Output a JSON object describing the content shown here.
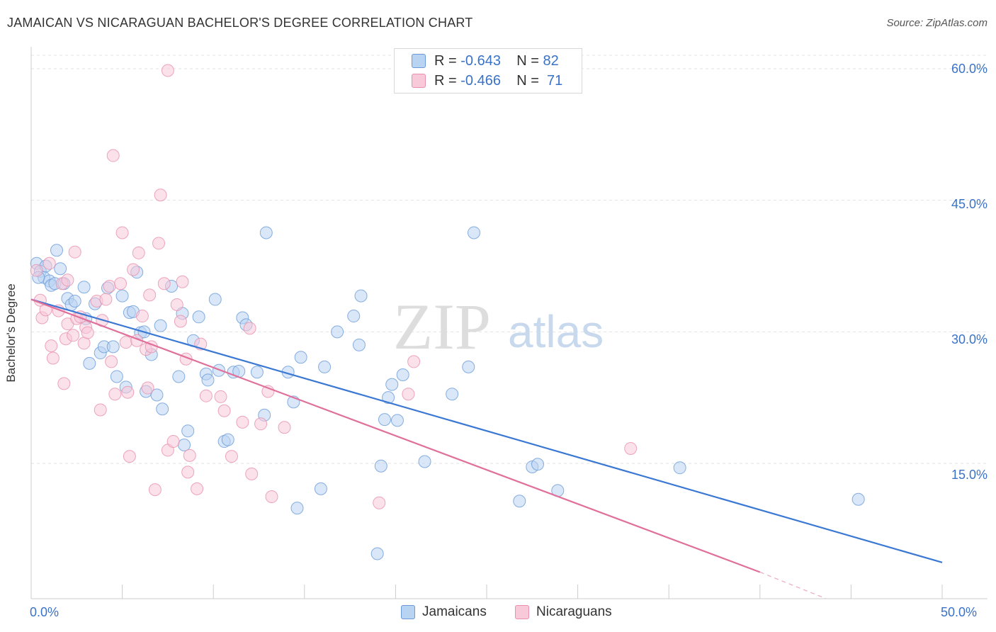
{
  "title": "JAMAICAN VS NICARAGUAN BACHELOR'S DEGREE CORRELATION CHART",
  "source": "Source: ZipAtlas.com",
  "watermark": {
    "zip": "ZIP",
    "atlas": "atlas"
  },
  "legend": {
    "rows": [
      {
        "r_label": "R = ",
        "r_value": "-0.643",
        "n_label": "N = ",
        "n_value": "82",
        "color": "#6a9bd8",
        "fill": "#b9d3f3"
      },
      {
        "r_label": "R = ",
        "r_value": "-0.466",
        "n_label": "N = ",
        "n_value": "71",
        "color": "#e890ac",
        "fill": "#f8c9d8"
      }
    ]
  },
  "bottom_legend": [
    "Jamaicans",
    "Nicaraguans"
  ],
  "x_tick_labels": {
    "left": "0.0%",
    "right": "50.0%"
  },
  "y_tick_labels": [
    "60.0%",
    "45.0%",
    "30.0%",
    "15.0%"
  ],
  "chart_data": {
    "type": "scatter",
    "title": "JAMAICAN VS NICARAGUAN BACHELOR'S DEGREE CORRELATION CHART",
    "xlabel": "",
    "ylabel": "Bachelor's Degree",
    "xlim": [
      0,
      50
    ],
    "ylim": [
      0,
      62
    ],
    "y_ticks": [
      15,
      30,
      45,
      60
    ],
    "x_ticks": [
      0,
      50
    ],
    "grid": "horizontal dashed",
    "legend_position": "top-center",
    "series": [
      {
        "name": "Jamaicans",
        "color": "#3a78d4",
        "point_fill": "#b9d3f3",
        "trend": {
          "x0": 0,
          "y0": 33.7,
          "x1": 50,
          "y1": 3.7
        },
        "points": [
          [
            0.3,
            37.8
          ],
          [
            0.5,
            36.9
          ],
          [
            0.7,
            36.2
          ],
          [
            0.8,
            37.5
          ],
          [
            1.0,
            35.8
          ],
          [
            1.1,
            35.3
          ],
          [
            1.3,
            35.5
          ],
          [
            1.4,
            39.3
          ],
          [
            1.6,
            37.2
          ],
          [
            1.8,
            35.5
          ],
          [
            2.0,
            33.8
          ],
          [
            2.2,
            33.1
          ],
          [
            2.9,
            35.1
          ],
          [
            3.0,
            31.5
          ],
          [
            3.2,
            26.4
          ],
          [
            3.5,
            33.2
          ],
          [
            3.8,
            27.6
          ],
          [
            4.0,
            28.3
          ],
          [
            4.2,
            35.0
          ],
          [
            4.5,
            28.3
          ],
          [
            4.7,
            24.9
          ],
          [
            5.0,
            34.1
          ],
          [
            5.2,
            23.7
          ],
          [
            5.4,
            32.2
          ],
          [
            5.6,
            32.3
          ],
          [
            5.8,
            36.8
          ],
          [
            6.0,
            29.9
          ],
          [
            6.2,
            30.0
          ],
          [
            6.3,
            23.2
          ],
          [
            6.6,
            27.4
          ],
          [
            6.9,
            22.8
          ],
          [
            7.1,
            30.7
          ],
          [
            7.2,
            21.2
          ],
          [
            7.7,
            35.2
          ],
          [
            8.1,
            24.9
          ],
          [
            8.3,
            32.1
          ],
          [
            8.4,
            17.1
          ],
          [
            8.6,
            18.7
          ],
          [
            8.9,
            29.0
          ],
          [
            9.2,
            31.7
          ],
          [
            9.6,
            25.2
          ],
          [
            9.7,
            24.5
          ],
          [
            10.1,
            33.7
          ],
          [
            10.3,
            25.6
          ],
          [
            10.6,
            17.5
          ],
          [
            10.8,
            17.7
          ],
          [
            11.1,
            25.4
          ],
          [
            11.4,
            25.5
          ],
          [
            11.6,
            31.6
          ],
          [
            11.8,
            30.8
          ],
          [
            12.4,
            25.4
          ],
          [
            12.8,
            20.5
          ],
          [
            12.9,
            41.3
          ],
          [
            14.1,
            25.4
          ],
          [
            14.4,
            22.0
          ],
          [
            14.6,
            9.9
          ],
          [
            14.8,
            27.1
          ],
          [
            15.9,
            12.1
          ],
          [
            16.1,
            26.0
          ],
          [
            16.8,
            30.0
          ],
          [
            17.7,
            31.8
          ],
          [
            18.0,
            28.5
          ],
          [
            18.1,
            34.1
          ],
          [
            19.0,
            4.7
          ],
          [
            19.2,
            14.7
          ],
          [
            19.4,
            20.0
          ],
          [
            19.6,
            22.5
          ],
          [
            19.8,
            24.0
          ],
          [
            20.1,
            19.9
          ],
          [
            20.4,
            25.1
          ],
          [
            21.6,
            15.2
          ],
          [
            23.1,
            22.9
          ],
          [
            24.0,
            26.0
          ],
          [
            24.3,
            41.3
          ],
          [
            26.8,
            10.7
          ],
          [
            27.5,
            14.6
          ],
          [
            27.8,
            14.9
          ],
          [
            28.9,
            11.9
          ],
          [
            35.6,
            14.5
          ],
          [
            45.4,
            10.9
          ],
          [
            0.4,
            36.2
          ],
          [
            2.4,
            33.5
          ]
        ]
      },
      {
        "name": "Nicaraguans",
        "color": "#e0709a",
        "point_fill": "#f8c9d8",
        "trend": {
          "x0": 0,
          "y0": 33.7,
          "x1": 40,
          "y1": 2.6,
          "dash_x1": 43.6,
          "dash_y1": -0.4
        },
        "points": [
          [
            0.3,
            37.0
          ],
          [
            0.5,
            33.6
          ],
          [
            0.6,
            31.6
          ],
          [
            0.8,
            32.5
          ],
          [
            1.0,
            37.8
          ],
          [
            1.1,
            28.4
          ],
          [
            1.2,
            27.0
          ],
          [
            1.5,
            32.4
          ],
          [
            1.7,
            35.5
          ],
          [
            1.8,
            24.1
          ],
          [
            1.9,
            29.2
          ],
          [
            2.0,
            30.9
          ],
          [
            2.3,
            29.6
          ],
          [
            2.4,
            39.1
          ],
          [
            2.5,
            31.5
          ],
          [
            2.7,
            31.7
          ],
          [
            2.9,
            28.7
          ],
          [
            3.0,
            30.5
          ],
          [
            3.1,
            29.9
          ],
          [
            3.6,
            33.5
          ],
          [
            3.8,
            21.1
          ],
          [
            3.9,
            31.3
          ],
          [
            4.1,
            33.7
          ],
          [
            4.3,
            35.2
          ],
          [
            4.4,
            26.6
          ],
          [
            4.5,
            50.1
          ],
          [
            4.6,
            22.9
          ],
          [
            4.9,
            35.5
          ],
          [
            5.0,
            41.3
          ],
          [
            5.2,
            28.8
          ],
          [
            5.3,
            23.1
          ],
          [
            5.4,
            15.8
          ],
          [
            5.6,
            37.1
          ],
          [
            5.8,
            29.0
          ],
          [
            5.9,
            39.0
          ],
          [
            6.1,
            31.8
          ],
          [
            6.3,
            28.0
          ],
          [
            6.4,
            23.6
          ],
          [
            6.5,
            34.2
          ],
          [
            6.6,
            28.3
          ],
          [
            6.8,
            12.0
          ],
          [
            7.0,
            40.1
          ],
          [
            7.1,
            45.6
          ],
          [
            7.3,
            35.5
          ],
          [
            7.5,
            16.5
          ],
          [
            7.8,
            17.5
          ],
          [
            8.0,
            33.1
          ],
          [
            8.2,
            31.2
          ],
          [
            8.3,
            35.7
          ],
          [
            8.5,
            26.9
          ],
          [
            8.6,
            14.0
          ],
          [
            8.7,
            15.9
          ],
          [
            9.1,
            12.1
          ],
          [
            9.3,
            28.6
          ],
          [
            9.6,
            22.7
          ],
          [
            10.4,
            22.6
          ],
          [
            10.6,
            21.0
          ],
          [
            11.0,
            15.8
          ],
          [
            11.6,
            19.7
          ],
          [
            12.0,
            30.4
          ],
          [
            12.1,
            13.8
          ],
          [
            12.6,
            19.5
          ],
          [
            13.2,
            11.2
          ],
          [
            13.0,
            23.2
          ],
          [
            13.9,
            19.1
          ],
          [
            19.1,
            10.5
          ],
          [
            20.7,
            22.9
          ],
          [
            21.0,
            26.6
          ],
          [
            32.9,
            16.7
          ],
          [
            7.5,
            59.8
          ],
          [
            2.0,
            35.9
          ]
        ]
      }
    ]
  }
}
